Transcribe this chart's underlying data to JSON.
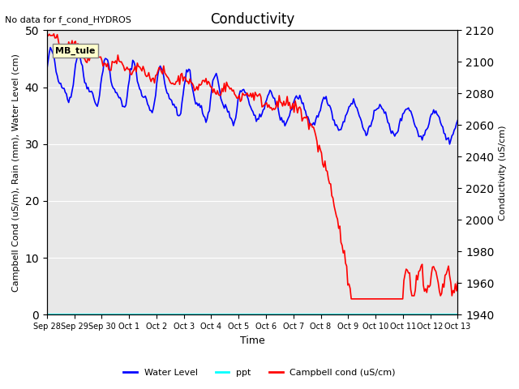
{
  "title": "Conductivity",
  "top_left_text": "No data for f_cond_HYDROS",
  "box_label": "MB_tule",
  "ylabel_left": "Campbell Cond (uS/m), Rain (mm), Water Level (cm)",
  "ylabel_right": "Conductivity (uS/cm)",
  "xlabel": "Time",
  "ylim_left": [
    0,
    50
  ],
  "ylim_right": [
    1940,
    2120
  ],
  "background_color": "#e8e8e8",
  "figure_bg": "#ffffff",
  "water_level_color": "#0000ff",
  "ppt_color": "#00ffff",
  "campbell_color": "#ff0000",
  "legend_entries": [
    "Water Level",
    "ppt",
    "Campbell cond (uS/cm)"
  ],
  "x_tick_labels": [
    "Sep 28",
    "Sep 29",
    "Sep 30",
    "Oct 1",
    "Oct 2",
    "Oct 3",
    "Oct 4",
    "Oct 5",
    "Oct 6",
    "Oct 7",
    "Oct 8",
    "Oct 9",
    "Oct 10",
    "Oct 11",
    "Oct 12",
    "Oct 13"
  ],
  "x_tick_offsets": [
    0,
    1,
    2,
    3,
    4,
    5,
    6,
    7,
    8,
    9,
    10,
    11,
    12,
    13,
    14,
    15
  ]
}
